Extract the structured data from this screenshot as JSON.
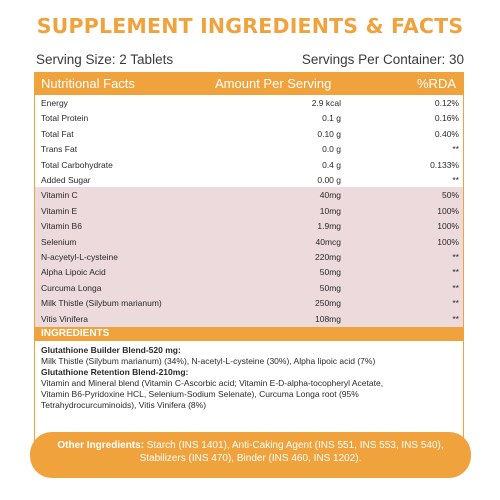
{
  "title": "SUPPLEMENT INGREDIENTS & FACTS",
  "serving_size": "Serving Size: 2 Tablets",
  "servings_per_container": "Servings Per Container: 30",
  "table": {
    "headers": [
      "Nutritional Facts",
      "Amount Per Serving",
      "%RDA"
    ],
    "rows": [
      {
        "name": "Energy",
        "amount": "2.9 kcal",
        "rda": "0.12%"
      },
      {
        "name": "Total Protein",
        "amount": "0.1 g",
        "rda": "0.16%"
      },
      {
        "name": "Total Fat",
        "amount": "0.10 g",
        "rda": "0.40%"
      },
      {
        "name": "Trans Fat",
        "amount": "0.0 g",
        "rda": "**"
      },
      {
        "name": "Total Carbohydrate",
        "amount": "0.4 g",
        "rda": "0.133%"
      },
      {
        "name": "Added Sugar",
        "amount": "0.00 g",
        "rda": "**"
      },
      {
        "name": "Vitamin C",
        "amount": "40mg",
        "rda": "50%"
      },
      {
        "name": "Vitamin E",
        "amount": "10mg",
        "rda": "100%"
      },
      {
        "name": "Vitamin B6",
        "amount": "1.9mg",
        "rda": "100%"
      },
      {
        "name": "Selenium",
        "amount": "40mcg",
        "rda": "100%"
      },
      {
        "name": "N-acyetyl-L-cysteine",
        "amount": "220mg",
        "rda": "**"
      },
      {
        "name": "Alpha Lipoic Acid",
        "amount": "50mg",
        "rda": "**"
      },
      {
        "name": "Curcuma Longa",
        "amount": "50mg",
        "rda": "**"
      },
      {
        "name": "Milk Thistle (Silybum marianum)",
        "amount": "250mg",
        "rda": "**"
      },
      {
        "name": "Vitis Vinifera",
        "amount": "108mg",
        "rda": "**"
      }
    ]
  },
  "ingredients": {
    "heading": "INGREDIENTS",
    "blend1_title": "Glutathione Builder Blend-520 mg:",
    "blend1_text": "Milk Thistle (Silybum marianum) (34%), N-acetyl-L-cysteine (30%), Alpha lipoic acid (7%)",
    "blend2_title": "Glutathione Retention Blend-210mg:",
    "blend2_line1": "Vitamin and Mineral blend (Vitamin C-Ascorbic acid; Vitamin E-D-alpha-tocopheryl Acetate,",
    "blend2_line2": "Vitamin B6-Pyridoxine HCL, Selenium-Sodium Selenate), Curcuma Longa root (95%",
    "blend2_line3": "Tetrahydrocurcuminoids), Vitis Vinifera (8%)"
  },
  "other_ingredients": {
    "label": "Other Ingredients:",
    "line1": " Starch (INS 1401), Anti-Caking Agent (INS 551, INS 553, INS 540),",
    "line2": "Stabilizers (INS 470), Binder (INS 460, INS 1202)."
  },
  "colors": {
    "accent": "#f0a23c",
    "band": "#ecdadd"
  }
}
